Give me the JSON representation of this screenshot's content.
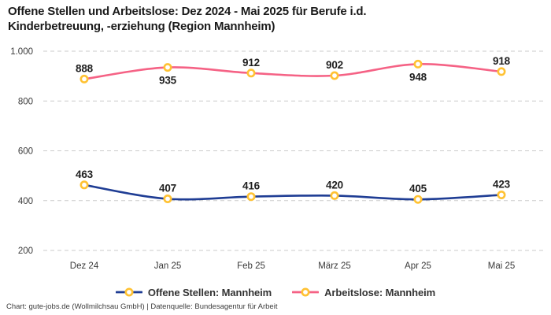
{
  "title_lines": [
    "Offene Stellen und Arbeitslose: Dez 2024 - Mai 2025 für Berufe i.d.",
    "Kinderbetreuung, -erziehung (Region Mannheim)"
  ],
  "footer": "Chart: gute-jobs.de (Wollmilchsau GmbH) | Datenquelle: Bundesagentur für Arbeit",
  "chart_data": {
    "type": "line",
    "title": "Offene Stellen und Arbeitslose: Dez 2024 - Mai 2025 für Berufe i.d. Kinderbetreuung, -erziehung (Region Mannheim)",
    "categories": [
      "Dez 24",
      "Jan 25",
      "Feb 25",
      "März 25",
      "Apr 25",
      "Mai 25"
    ],
    "series": [
      {
        "name": "Offene Stellen: Mannheim",
        "values": [
          463,
          407,
          416,
          420,
          405,
          423
        ],
        "color": "#1f3d94",
        "labels_below_indices": []
      },
      {
        "name": "Arbeitslose: Mannheim",
        "values": [
          888,
          935,
          912,
          902,
          948,
          918
        ],
        "color": "#f56285",
        "labels_below_indices": [
          1,
          4
        ]
      }
    ],
    "marker": {
      "fill": "#ffffff",
      "ring": "#ffc233"
    },
    "ylim": [
      200,
      1000
    ],
    "yticks": [
      200,
      400,
      600,
      800,
      1000
    ],
    "ytick_labels": [
      "200",
      "400",
      "600",
      "800",
      "1.000"
    ],
    "grid": "horizontal-dashed",
    "grid_color": "#cbcbcb",
    "label_color": "#1f1f1f",
    "tick_color": "#3a3a3a",
    "legend_position": "bottom",
    "xlabel": "",
    "ylabel": ""
  }
}
